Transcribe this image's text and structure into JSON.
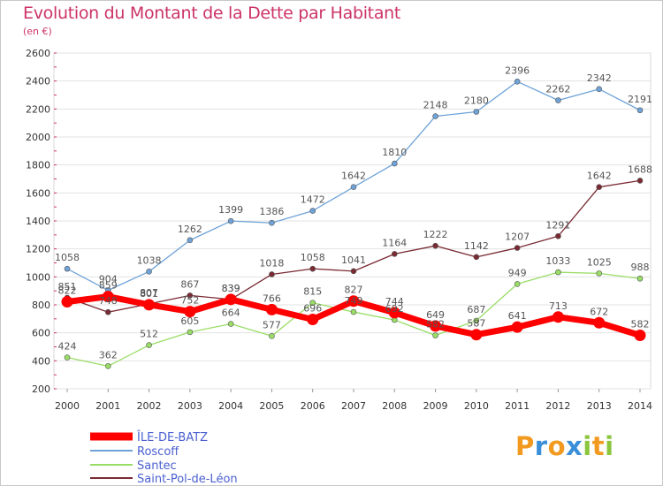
{
  "title": "Evolution du Montant de la Dette par Habitant",
  "unit": "(en €)",
  "logo": {
    "letters": [
      "P",
      "r",
      "o",
      "x",
      "i",
      "t",
      "i"
    ],
    "colors": [
      "#f29a1f",
      "#3b8fd9",
      "#f29a1f",
      "#3b8fd9",
      "#8cc63f",
      "#f29a1f",
      "#8cc63f"
    ]
  },
  "chart_data": {
    "type": "line",
    "x": [
      "2000",
      "2001",
      "2002",
      "2003",
      "2004",
      "2005",
      "2006",
      "2007",
      "2008",
      "2009",
      "2010",
      "2011",
      "2012",
      "2013",
      "2014"
    ],
    "ylim": [
      200,
      2600
    ],
    "yticks": [
      200,
      400,
      600,
      800,
      1000,
      1200,
      1400,
      1600,
      1800,
      2000,
      2200,
      2400,
      2600
    ],
    "grid": "horizontal",
    "legend_position": "bottom-left",
    "series": [
      {
        "name": "ÎLE-DE-BATZ",
        "color": "#ff0000",
        "labelColor": "#555555",
        "values": [
          822,
          859,
          801,
          752,
          839,
          766,
          696,
          827,
          744,
          649,
          587,
          641,
          713,
          672,
          582
        ],
        "labels": [
          "822",
          "859",
          "801",
          "752",
          "839",
          "766",
          "696",
          "827",
          "744",
          "649",
          "587",
          "641",
          "713",
          "672",
          "582"
        ]
      },
      {
        "name": "Roscoff",
        "color": "#6fa3d8",
        "labelColor": "#555555",
        "values": [
          1058,
          904,
          1038,
          1262,
          1399,
          1386,
          1472,
          1642,
          1810,
          2148,
          2180,
          2396,
          2262,
          2342,
          2191
        ],
        "labels": [
          "1058",
          "904",
          "1038",
          "1262",
          "1399",
          "1386",
          "1472",
          "1642",
          "1810",
          "2148",
          "2180",
          "2396",
          "2262",
          "2342",
          "2191"
        ]
      },
      {
        "name": "Santec",
        "color": "#99dd66",
        "labelColor": "#555555",
        "values": [
          424,
          362,
          512,
          605,
          664,
          577,
          815,
          749,
          692,
          582,
          687,
          949,
          1033,
          1025,
          988
        ],
        "labels": [
          "424",
          "362",
          "512",
          "605",
          "664",
          "577",
          "815",
          "749",
          "692",
          "582",
          "687",
          "949",
          "1033",
          "1025",
          "988"
        ]
      },
      {
        "name": "Saint-Pol-de-Léon",
        "color": "#7a2a33",
        "labelColor": "#555555",
        "values": [
          851,
          748,
          807,
          867,
          839,
          1018,
          1058,
          1041,
          1164,
          1222,
          1142,
          1207,
          1291,
          1642,
          1688
        ],
        "labels": [
          "851",
          "748",
          "807",
          "867",
          "839",
          "1018",
          "1058",
          "1041",
          "1164",
          "1222",
          "1142",
          "1207",
          "1291",
          "1642",
          "1688"
        ]
      }
    ]
  }
}
